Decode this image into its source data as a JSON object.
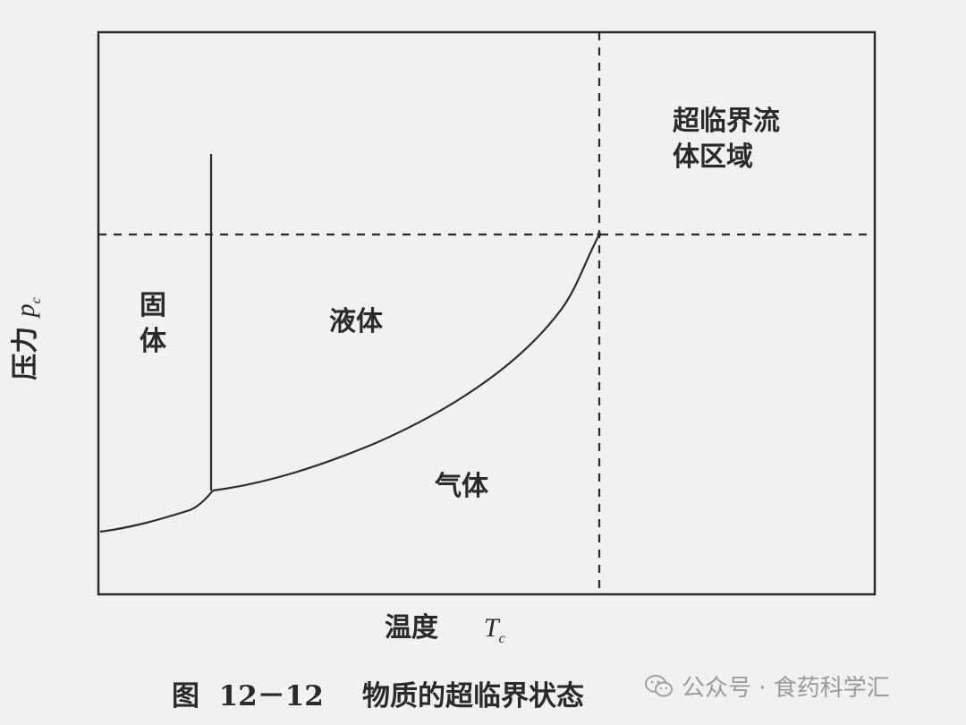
{
  "diagram": {
    "regions": {
      "solid": "固\n体",
      "liquid": "液体",
      "gas": "气体",
      "supercritical": "超临界流\n体区域"
    },
    "y_axis_label": "压力",
    "y_axis_symbol": "p",
    "y_axis_subscript": "c",
    "x_axis_label": "温度",
    "x_axis_symbol": "T",
    "x_axis_subscript": "c"
  },
  "caption": "图  12－12    物质的超临界状态",
  "watermark": {
    "text": "公众号 · 食药科学汇",
    "icon": "wechat-icon"
  }
}
